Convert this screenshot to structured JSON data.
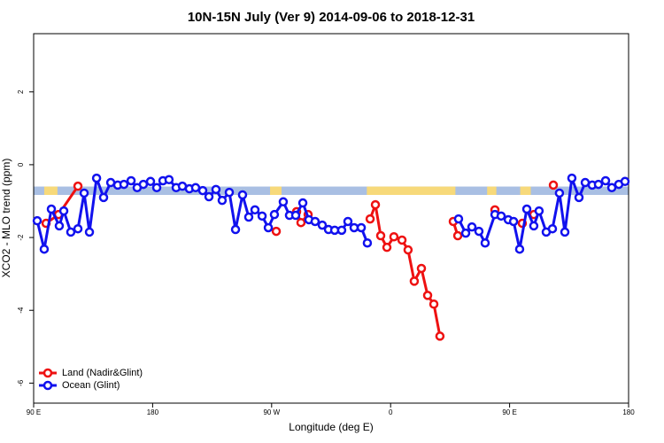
{
  "chart_data": {
    "type": "line",
    "title": "10N-15N July (Ver 9)   2014-09-06 to 2018-12-31",
    "x_label": "Longitude (deg E)",
    "y_label": "XCO2 - MLO trend (ppm)",
    "xlim": [
      90,
      540
    ],
    "ylim": [
      -6.55,
      3.6
    ],
    "xticks": [
      {
        "value": 90,
        "label": "90 E"
      },
      {
        "value": 180,
        "label": "180"
      },
      {
        "value": 270,
        "label": "90 W"
      },
      {
        "value": 360,
        "label": "0"
      },
      {
        "value": 450,
        "label": "90 E"
      },
      {
        "value": 540,
        "label": "180"
      }
    ],
    "yticks": [
      -6,
      -4,
      -2,
      0,
      2
    ],
    "band": {
      "values": [
        -0.83,
        -0.6
      ],
      "color": "#a9bfe3"
    },
    "land_ranges": {
      "color": "#f7d97a",
      "ranges": [
        [
          98,
          108
        ],
        [
          268.8,
          277.5
        ],
        [
          342,
          409
        ],
        [
          433,
          440
        ],
        [
          458,
          466
        ]
      ]
    },
    "legend": "bottom-left",
    "series": [
      {
        "name": "Land (Nadir&Glint)",
        "color": "#ee1111",
        "x": [
          99.4,
          108.8,
          123.5,
          null,
          273.5,
          null,
          288.9,
          292.2,
          297.6,
          null,
          344.5,
          348.5,
          352.5,
          357.2,
          362.5,
          368.6,
          373.2,
          377.9,
          383.3,
          388.0,
          392.7,
          397.3,
          null,
          407.4,
          410.8,
          null,
          438.9,
          null,
          459.6,
          null,
          468.3,
          null,
          483.1
        ],
        "values": [
          -1.61,
          -1.37,
          -0.59,
          null,
          -1.83,
          null,
          -1.29,
          -1.59,
          -1.37,
          null,
          -1.49,
          -1.1,
          -1.95,
          -2.27,
          -1.98,
          -2.07,
          -2.34,
          -3.2,
          -2.85,
          -3.59,
          -3.83,
          -4.71,
          null,
          -1.56,
          -1.95,
          null,
          -1.24,
          null,
          -1.61,
          null,
          -1.37,
          null,
          -0.56
        ]
      },
      {
        "name": "Ocean (Glint)",
        "color": "#1111ee",
        "x": [
          92.7,
          98.0,
          103.4,
          109.4,
          112.8,
          118.1,
          123.5,
          128.2,
          132.2,
          137.6,
          142.9,
          148.3,
          153.6,
          158.3,
          163.7,
          168.3,
          173.0,
          178.4,
          183.1,
          187.8,
          192.4,
          197.8,
          202.5,
          207.8,
          212.5,
          217.9,
          222.6,
          227.9,
          232.6,
          238.0,
          242.7,
          248.0,
          252.7,
          257.4,
          262.8,
          267.5,
          272.1,
          278.8,
          283.5,
          288.2,
          293.6,
          298.2,
          302.9,
          308.3,
          313.0,
          317.7,
          323.0,
          327.7,
          332.4,
          337.8,
          342.4,
          null,
          411.4,
          416.8,
          421.5,
          426.8,
          431.5,
          438.9,
          443.6,
          449.0,
          453.0,
          457.6,
          463.0,
          468.3,
          472.3,
          477.7,
          482.4,
          487.7,
          491.8,
          497.1,
          502.5,
          507.2,
          512.5,
          517.2,
          522.6,
          527.3,
          532.6,
          537.3
        ],
        "values": [
          -1.54,
          -2.32,
          -1.22,
          -1.68,
          -1.27,
          -1.85,
          -1.76,
          -0.78,
          -1.85,
          -0.37,
          -0.9,
          -0.49,
          -0.56,
          -0.54,
          -0.44,
          -0.63,
          -0.54,
          -0.46,
          -0.63,
          -0.44,
          -0.41,
          -0.63,
          -0.59,
          -0.66,
          -0.63,
          -0.71,
          -0.88,
          -0.68,
          -0.98,
          -0.76,
          -1.78,
          -0.83,
          -1.44,
          -1.24,
          -1.41,
          -1.73,
          -1.37,
          -1.02,
          -1.39,
          -1.39,
          -1.05,
          -1.51,
          -1.56,
          -1.66,
          -1.78,
          -1.8,
          -1.8,
          -1.56,
          -1.73,
          -1.73,
          -2.15,
          null,
          -1.49,
          -1.88,
          -1.71,
          -1.83,
          -2.15,
          -1.37,
          -1.41,
          -1.51,
          -1.56,
          -2.32,
          -1.22,
          -1.68,
          -1.27,
          -1.85,
          -1.76,
          -0.78,
          -1.85,
          -0.37,
          -0.9,
          -0.49,
          -0.56,
          -0.54,
          -0.44,
          -0.63,
          -0.54,
          -0.46
        ]
      }
    ]
  }
}
